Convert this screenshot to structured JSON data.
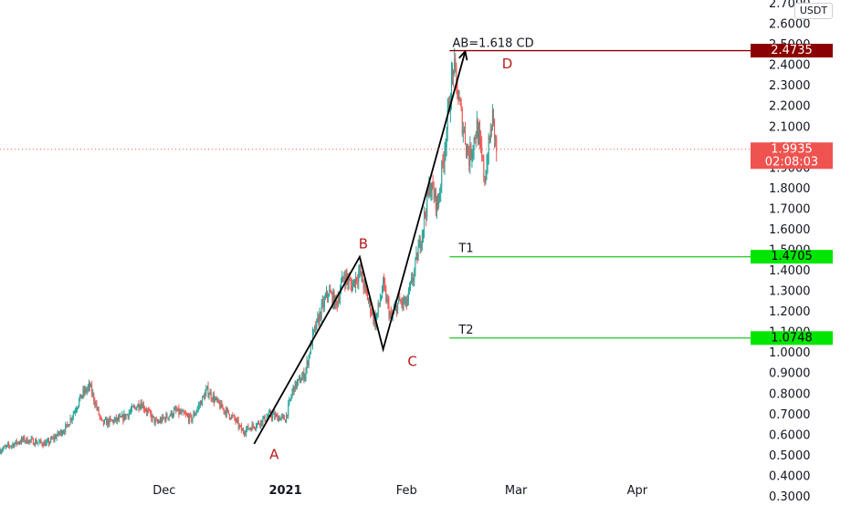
{
  "currency_badge": "USDT",
  "chart_data": {
    "type": "candlestick",
    "title": "",
    "ylim": [
      0.28,
      2.72
    ],
    "y_ticks": [
      2.7,
      2.6,
      2.5,
      2.4,
      2.3,
      2.2,
      2.1,
      2.0,
      1.9,
      1.8,
      1.7,
      1.6,
      1.5,
      1.4,
      1.3,
      1.2,
      1.1,
      1.0,
      0.9,
      0.8,
      0.7,
      0.6,
      0.5,
      0.4,
      0.3
    ],
    "y_tick_labels": [
      "2.7000",
      "2.6000",
      "2.5000",
      "2.4000",
      "2.3000",
      "2.2000",
      "2.1000",
      "2.0000",
      "1.9000",
      "1.8000",
      "1.7000",
      "1.6000",
      "1.5000",
      "1.4000",
      "1.3000",
      "1.2000",
      "1.1000",
      "1.0000",
      "0.9000",
      "0.8000",
      "0.7000",
      "0.6000",
      "0.5000",
      "0.4000",
      "0.3000"
    ],
    "x_range": [
      "2020-10-20",
      "2021-04-30"
    ],
    "x_ticks": [
      {
        "date": "2020-12-01",
        "label": "Dec",
        "bold": false
      },
      {
        "date": "2021-01-01",
        "label": "2021",
        "bold": true
      },
      {
        "date": "2021-02-01",
        "label": "Feb",
        "bold": false
      },
      {
        "date": "2021-03-01",
        "label": "Mar",
        "bold": false
      },
      {
        "date": "2021-04-01",
        "label": "Apr",
        "bold": false
      }
    ],
    "price_path": [
      [
        "2020-10-20",
        0.53
      ],
      [
        "2020-10-26",
        0.58
      ],
      [
        "2020-11-01",
        0.56
      ],
      [
        "2020-11-06",
        0.64
      ],
      [
        "2020-11-10",
        0.8
      ],
      [
        "2020-11-12",
        0.84
      ],
      [
        "2020-11-15",
        0.66
      ],
      [
        "2020-11-20",
        0.68
      ],
      [
        "2020-11-25",
        0.76
      ],
      [
        "2020-11-29",
        0.66
      ],
      [
        "2020-12-04",
        0.72
      ],
      [
        "2020-12-08",
        0.68
      ],
      [
        "2020-12-12",
        0.82
      ],
      [
        "2020-12-15",
        0.75
      ],
      [
        "2020-12-19",
        0.68
      ],
      [
        "2020-12-21",
        0.62
      ],
      [
        "2020-12-25",
        0.66
      ],
      [
        "2020-12-28",
        0.7
      ],
      [
        "2021-01-01",
        0.68
      ],
      [
        "2021-01-03",
        0.83
      ],
      [
        "2021-01-06",
        0.9
      ],
      [
        "2021-01-08",
        1.08
      ],
      [
        "2021-01-10",
        1.2
      ],
      [
        "2021-01-12",
        1.3
      ],
      [
        "2021-01-14",
        1.24
      ],
      [
        "2021-01-16",
        1.38
      ],
      [
        "2021-01-18",
        1.33
      ],
      [
        "2021-01-20",
        1.4
      ],
      [
        "2021-01-22",
        1.27
      ],
      [
        "2021-01-24",
        1.15
      ],
      [
        "2021-01-26",
        1.33
      ],
      [
        "2021-01-28",
        1.17
      ],
      [
        "2021-01-30",
        1.25
      ],
      [
        "2021-02-01",
        1.24
      ],
      [
        "2021-02-03",
        1.4
      ],
      [
        "2021-02-05",
        1.6
      ],
      [
        "2021-02-07",
        1.82
      ],
      [
        "2021-02-09",
        1.72
      ],
      [
        "2021-02-11",
        2.05
      ],
      [
        "2021-02-13",
        2.4
      ],
      [
        "2021-02-15",
        2.15
      ],
      [
        "2021-02-17",
        1.95
      ],
      [
        "2021-02-19",
        2.1
      ],
      [
        "2021-02-21",
        1.85
      ],
      [
        "2021-02-23",
        2.15
      ],
      [
        "2021-02-24",
        1.99
      ]
    ],
    "pattern": {
      "type": "ABCD",
      "points": [
        {
          "label": "A",
          "date": "2020-12-24",
          "value": 0.56
        },
        {
          "label": "B",
          "date": "2021-01-20",
          "value": 1.47
        },
        {
          "label": "C",
          "date": "2021-01-26",
          "value": 1.02
        },
        {
          "label": "D",
          "date": "2021-02-16",
          "value": 2.47
        }
      ],
      "annotation": "AB=1.618 CD"
    },
    "levels": [
      {
        "label": "D",
        "value": 2.4735,
        "price_tag": "2.4735",
        "color": "#8b0000",
        "line_color": "#8b0000",
        "start": "2021-02-12"
      },
      {
        "label": "T1",
        "value": 1.4705,
        "price_tag": "1.4705",
        "color": "#00e600",
        "line_color": "#33cc33",
        "start": "2021-02-12"
      },
      {
        "label": "T2",
        "value": 1.0748,
        "price_tag": "1.0748",
        "color": "#00e600",
        "line_color": "#33cc33",
        "start": "2021-02-12"
      }
    ],
    "last_price": {
      "value": 1.9935,
      "label": "1.9935",
      "countdown": "02:08:03",
      "color": "#ef5350"
    },
    "colors": {
      "up": "#26a69a",
      "down": "#ef5350",
      "pattern_label": "#b71c1c",
      "axis_text": "#131722"
    }
  }
}
